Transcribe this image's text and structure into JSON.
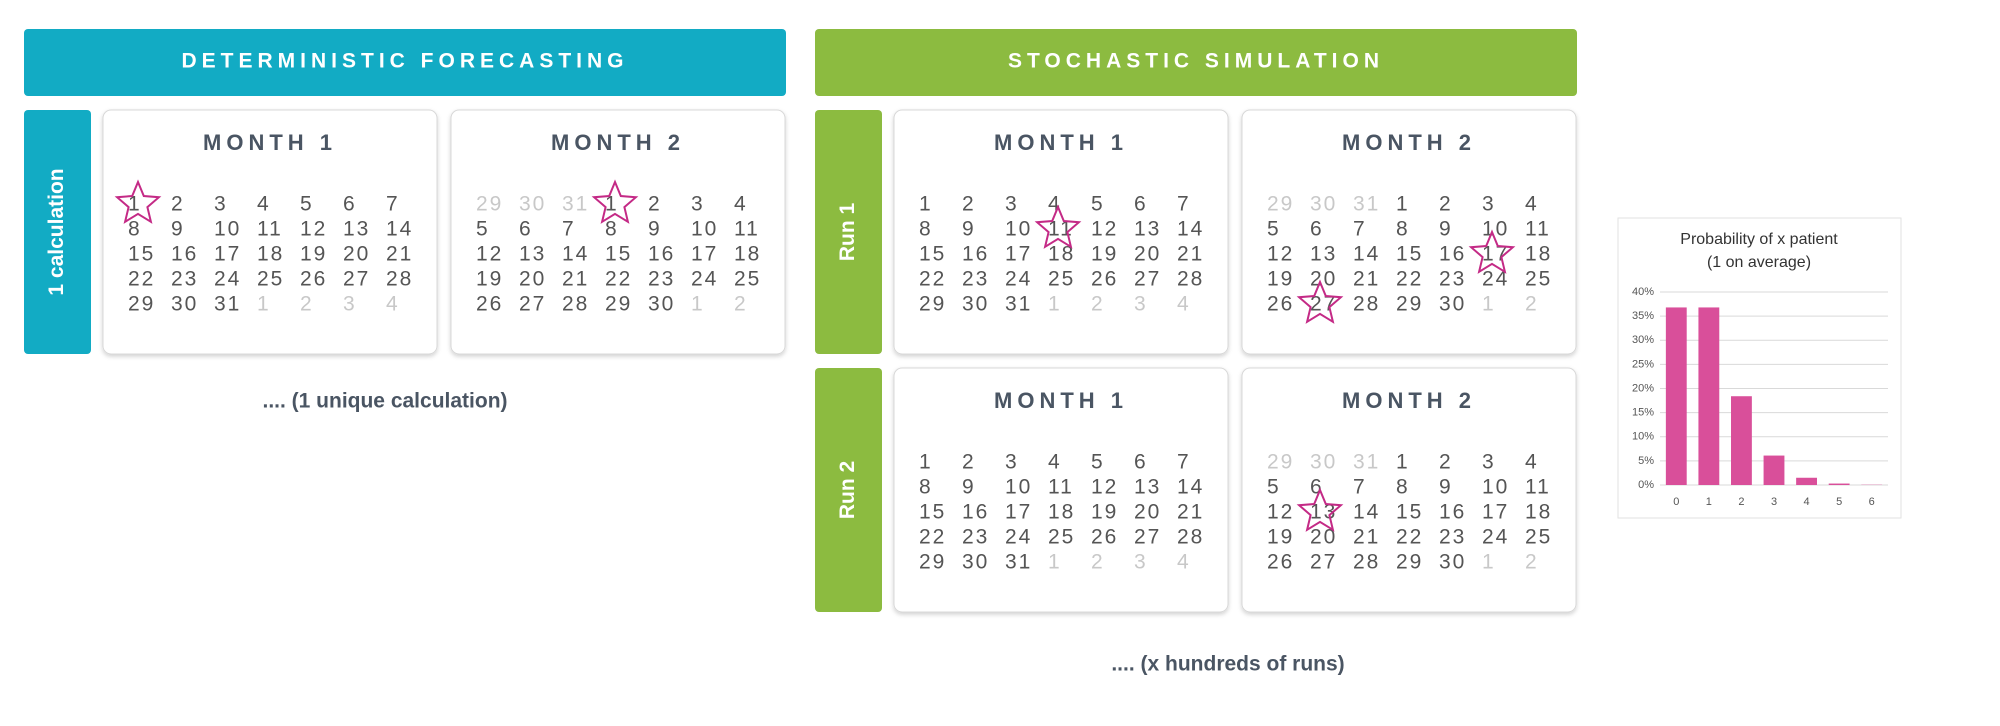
{
  "deterministic": {
    "header": "DETERMINISTIC FORECASTING",
    "panels": [
      {
        "label": "1 calculation",
        "cards": [
          {
            "events": [
              1
            ]
          },
          {
            "events": [
              1
            ]
          }
        ]
      }
    ],
    "caption": ".... (1 unique calculation)"
  },
  "stochastic": {
    "header": "STOCHASTIC SIMULATION",
    "panels": [
      {
        "label": "Run 1",
        "cards": [
          {
            "events": [
              11
            ]
          },
          {
            "events": [
              17,
              27
            ]
          }
        ]
      },
      {
        "label": "Run 2",
        "cards": [
          {
            "events": []
          },
          {
            "events": [
              13
            ]
          }
        ]
      }
    ],
    "caption": ".... (x hundreds of runs)"
  },
  "months": [
    {
      "title": "MONTH 1",
      "lead": [],
      "days": [
        1,
        2,
        3,
        4,
        5,
        6,
        7,
        8,
        9,
        10,
        11,
        12,
        13,
        14,
        15,
        16,
        17,
        18,
        19,
        20,
        21,
        22,
        23,
        24,
        25,
        26,
        27,
        28,
        29,
        30,
        31
      ],
      "trail": [
        1,
        2,
        3,
        4
      ]
    },
    {
      "title": "MONTH 2",
      "lead": [
        29,
        30,
        31
      ],
      "days": [
        1,
        2,
        3,
        4,
        5,
        6,
        7,
        8,
        9,
        10,
        11,
        12,
        13,
        14,
        15,
        16,
        17,
        18,
        19,
        20,
        21,
        22,
        23,
        24,
        25,
        26,
        27,
        28,
        29,
        30
      ],
      "trail": [
        1,
        2
      ]
    }
  ],
  "chart_data": {
    "type": "bar",
    "title": "Probability of x patient",
    "subtitle": "(1 on average)",
    "categories": [
      "0",
      "1",
      "2",
      "3",
      "4",
      "5",
      "6"
    ],
    "values": [
      36.8,
      36.8,
      18.4,
      6.1,
      1.5,
      0.3,
      0.05
    ],
    "color": "#d94f9a",
    "ylim": [
      0,
      40
    ],
    "yticks": [
      {
        "value": 0,
        "label": "0%"
      },
      {
        "value": 5,
        "label": "5%"
      },
      {
        "value": 10,
        "label": "10%"
      },
      {
        "value": 15,
        "label": "15%"
      },
      {
        "value": 20,
        "label": "20%"
      },
      {
        "value": 25,
        "label": "25%"
      },
      {
        "value": 30,
        "label": "30%"
      },
      {
        "value": 35,
        "label": "35%"
      },
      {
        "value": 40,
        "label": "40%"
      }
    ],
    "grid": true
  }
}
